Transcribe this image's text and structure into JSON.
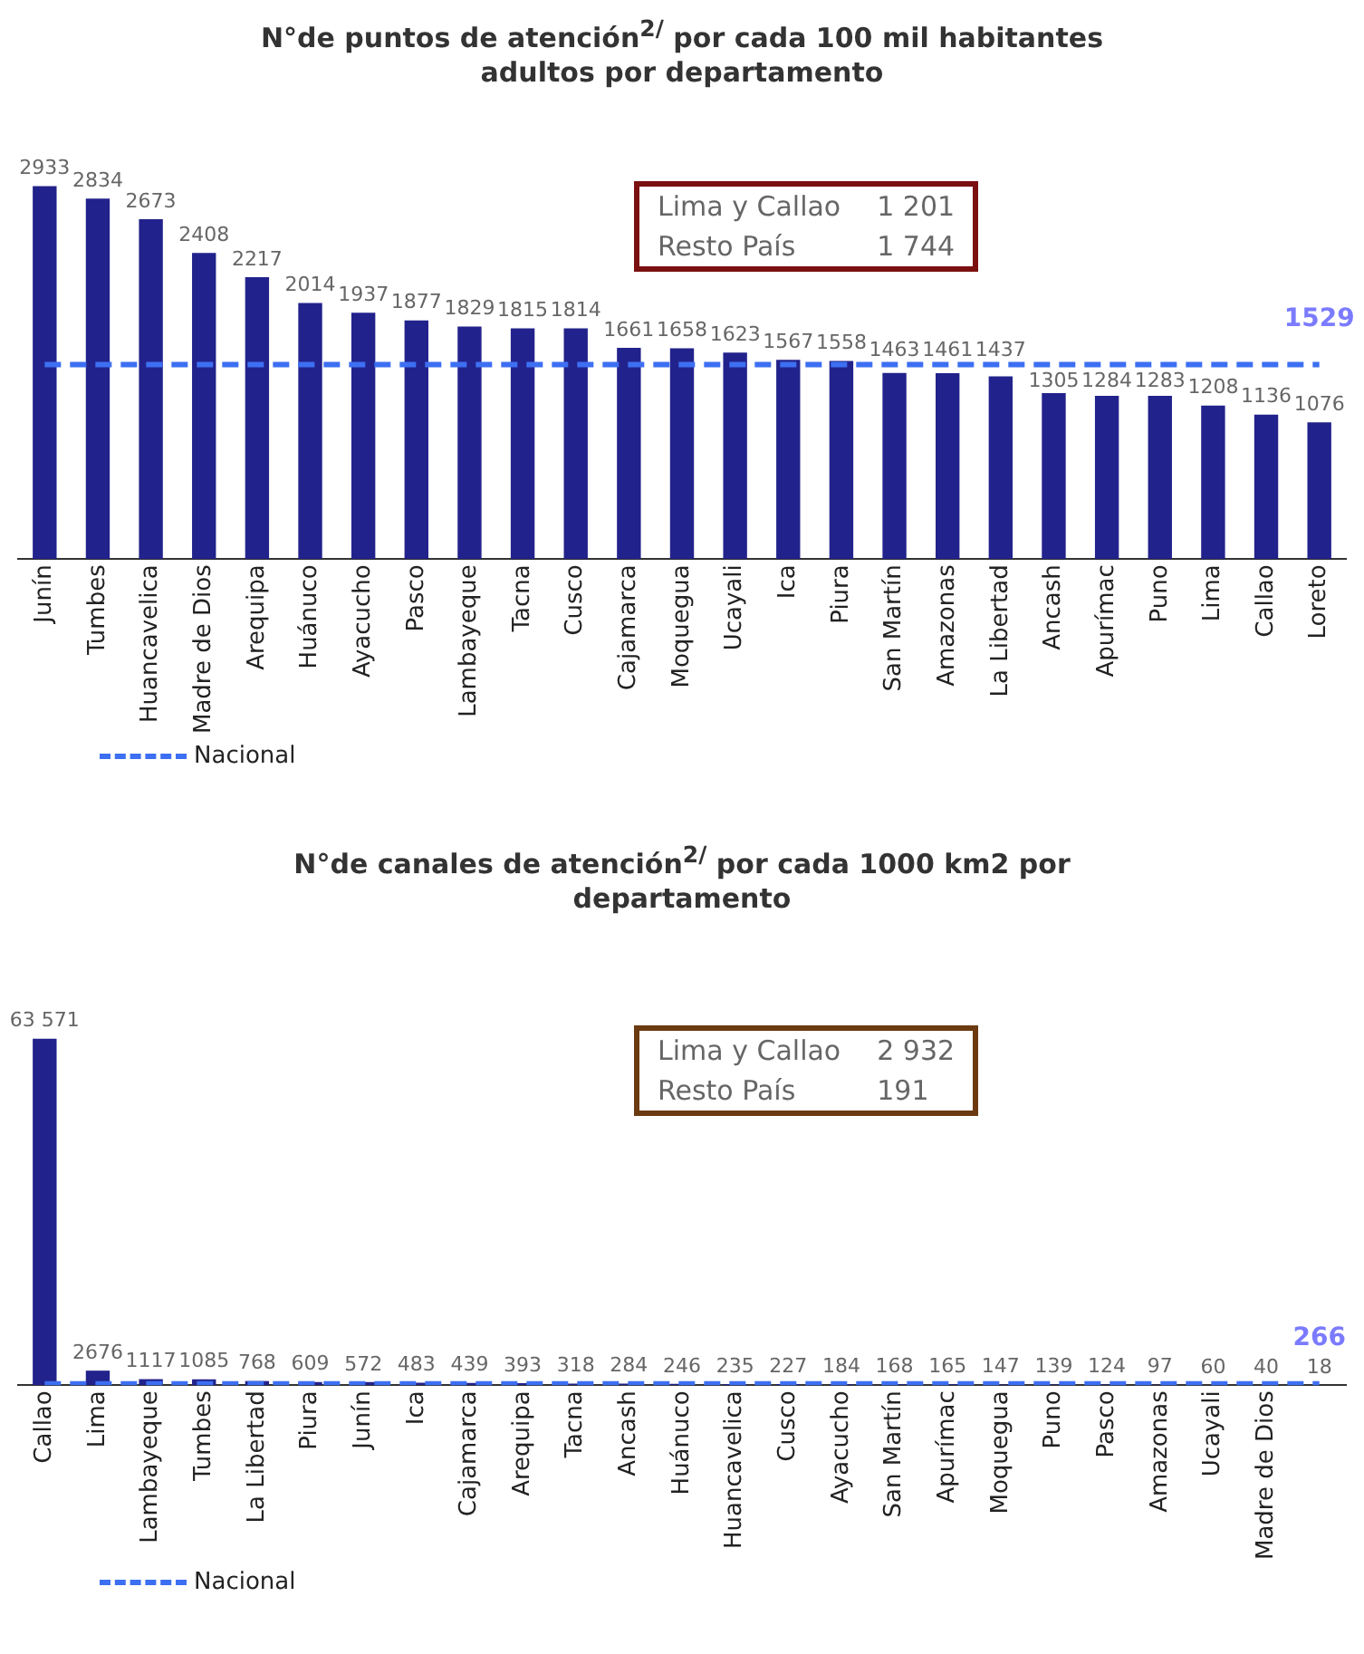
{
  "chart_data": [
    {
      "type": "bar",
      "title": "N°de puntos de atención$^{2/}$ por cada 100 mil habitantes adultos por departamento",
      "categories": [
        "Junín",
        "Tumbes",
        "Huancavelica",
        "Madre de Dios",
        "Arequipa",
        "Huánuco",
        "Ayacucho",
        "Pasco",
        "Lambayeque",
        "Tacna",
        "Cusco",
        "Cajamarca",
        "Moquegua",
        "Ucayali",
        "Ica",
        "Piura",
        "San Martín",
        "Amazonas",
        "La Libertad",
        "Ancash",
        "Apurímac",
        "Puno",
        "Lima",
        "Callao",
        "Loreto"
      ],
      "series": [
        {
          "color": "#22228c",
          "values": [
            2933,
            2834,
            2673,
            2408,
            2217,
            2014,
            1937,
            1877,
            1829,
            1815,
            1814,
            1661,
            1658,
            1623,
            1567,
            1558,
            1463,
            1461,
            1437,
            1305,
            1284,
            1283,
            1208,
            1136,
            1076
          ],
          "value_labels": [
            "2933",
            "2834",
            "2673",
            "2408",
            "2217",
            "2014",
            "1937",
            "1877",
            "1829",
            "1815",
            "1814",
            "1661",
            "1658",
            "1623",
            "1567",
            "1558",
            "1463",
            "1461",
            "1437",
            "1305",
            "1284",
            "1283",
            "1208",
            "1136",
            "1076"
          ]
        },
        {
          "type": "line",
          "name": "Nacional",
          "color": "#3d6ff2",
          "line_style": "dashed",
          "values": [
            1529,
            1529,
            1529,
            1529,
            1529,
            1529,
            1529,
            1529,
            1529,
            1529,
            1529,
            1529,
            1529,
            1529,
            1529,
            1529,
            1529,
            1529,
            1529,
            1529,
            1529,
            1529,
            1529,
            1529,
            1529
          ],
          "value_labels": [
            null,
            null,
            null,
            null,
            null,
            null,
            null,
            null,
            null,
            null,
            null,
            null,
            null,
            null,
            null,
            null,
            null,
            null,
            null,
            null,
            null,
            null,
            null,
            null,
            "1529"
          ]
        }
      ],
      "marker": "none",
      "annotations": [
        "Lima y Callao",
        "1 201",
        "Resto País",
        "1 744"
      ],
      "legend": "bottom left"
    },
    {
      "type": "bar",
      "title": "N°de canales de atención$^{2/}$ por cada 1000 km2 por departamento",
      "categories": [
        "Callao",
        "Lima",
        "Lambayeque",
        "Tumbes",
        "La Libertad",
        "Piura",
        "Junín",
        "Ica",
        "Cajamarca",
        "Arequipa",
        "Tacna",
        "Ancash",
        "Huánuco",
        "Huancavelica",
        "Cusco",
        "Ayacucho",
        "San Martín",
        "Apurímac",
        "Moquegua",
        "Puno",
        "Pasco",
        "Amazonas",
        "Ucayali",
        "Madre de Dios",
        null
      ],
      "series": [
        {
          "color": "#22228c",
          "values": [
            63571,
            2676,
            1117,
            1085,
            768,
            609,
            572,
            483,
            439,
            393,
            318,
            284,
            246,
            235,
            227,
            184,
            168,
            165,
            147,
            139,
            124,
            97,
            60,
            40,
            18
          ],
          "value_labels": [
            "63 571",
            "2676",
            "1117",
            "1085",
            "768",
            "609",
            "572",
            "483",
            "439",
            "393",
            "318",
            "284",
            "246",
            "235",
            "227",
            "184",
            "168",
            "165",
            "147",
            "139",
            "124",
            "97",
            "60",
            "40",
            "18"
          ]
        },
        {
          "type": "line",
          "name": "Nacional",
          "color": "#3d6ff2",
          "line_style": "dashed",
          "values": [
            266,
            266,
            266,
            266,
            266,
            266,
            266,
            266,
            266,
            266,
            266,
            266,
            266,
            266,
            266,
            266,
            266,
            266,
            266,
            266,
            266,
            266,
            266,
            266,
            266
          ],
          "value_labels": [
            null,
            null,
            null,
            null,
            null,
            null,
            null,
            null,
            null,
            null,
            null,
            null,
            null,
            null,
            null,
            null,
            null,
            null,
            null,
            null,
            null,
            null,
            null,
            null,
            "266"
          ]
        }
      ],
      "marker": "none",
      "annotations": [
        "Lima y Callao",
        "2 932",
        "Resto País",
        "191"
      ],
      "legend": "bottom left"
    }
  ]
}
